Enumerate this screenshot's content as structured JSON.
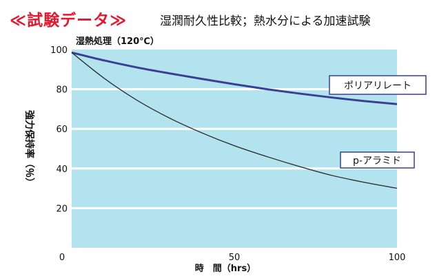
{
  "header": {
    "title": "≪試験データ≫",
    "subtitle": "湿潤耐久性比較；熱水分による加速試験"
  },
  "chart_data": {
    "type": "line",
    "title": "",
    "condition_label": "湿熱処理（120℃）",
    "xlabel": "時　間（hrs）",
    "ylabel": "強力保持率（％）",
    "xlim": [
      0,
      100
    ],
    "ylim": [
      0,
      100
    ],
    "x_ticks": [
      0,
      50,
      100
    ],
    "y_ticks": [
      20,
      40,
      60,
      80,
      100
    ],
    "plot_background": "#b3e3ee",
    "grid": "horizontal",
    "series": [
      {
        "name": "ポリアリレート",
        "color": "#3a3f94",
        "x": [
          0,
          10,
          20,
          30,
          40,
          50,
          60,
          70,
          80,
          90,
          100
        ],
        "values": [
          98.5,
          94.5,
          91.0,
          88.0,
          85.2,
          82.5,
          80.0,
          77.8,
          75.8,
          74.0,
          72.5
        ]
      },
      {
        "name": "p-アラミド",
        "color": "#333333",
        "x": [
          0,
          10,
          20,
          30,
          40,
          50,
          60,
          70,
          80,
          90,
          100
        ],
        "values": [
          98.5,
          85.5,
          74.5,
          65.5,
          58.0,
          51.5,
          46.0,
          41.0,
          36.5,
          33.0,
          30.0
        ]
      }
    ]
  }
}
